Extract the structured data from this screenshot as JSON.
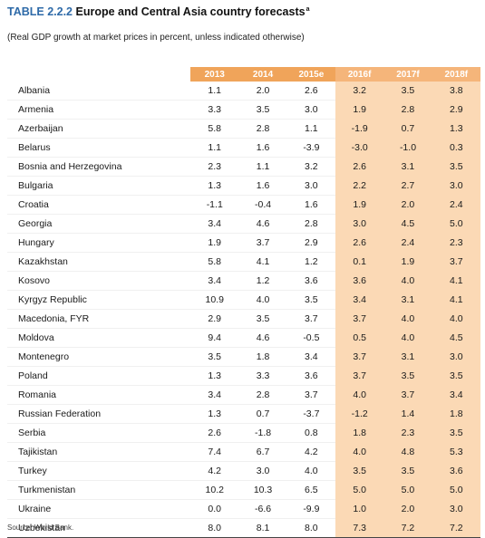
{
  "header": {
    "table_label": "TABLE 2.2.2",
    "title": "Europe and Central Asia country forecasts",
    "title_note": "a",
    "subtitle": "(Real GDP growth at market prices in percent, unless indicated otherwise)"
  },
  "table": {
    "columns": [
      "2013",
      "2014",
      "2015e",
      "2016f",
      "2017f",
      "2018f"
    ],
    "rows": [
      {
        "name": "Albania",
        "values": [
          "1.1",
          "2.0",
          "2.6",
          "3.2",
          "3.5",
          "3.8"
        ]
      },
      {
        "name": "Armenia",
        "values": [
          "3.3",
          "3.5",
          "3.0",
          "1.9",
          "2.8",
          "2.9"
        ]
      },
      {
        "name": "Azerbaijan",
        "values": [
          "5.8",
          "2.8",
          "1.1",
          "-1.9",
          "0.7",
          "1.3"
        ]
      },
      {
        "name": "Belarus",
        "values": [
          "1.1",
          "1.6",
          "-3.9",
          "-3.0",
          "-1.0",
          "0.3"
        ]
      },
      {
        "name": "Bosnia and Herzegovina",
        "values": [
          "2.3",
          "1.1",
          "3.2",
          "2.6",
          "3.1",
          "3.5"
        ]
      },
      {
        "name": "Bulgaria",
        "values": [
          "1.3",
          "1.6",
          "3.0",
          "2.2",
          "2.7",
          "3.0"
        ]
      },
      {
        "name": "Croatia",
        "values": [
          "-1.1",
          "-0.4",
          "1.6",
          "1.9",
          "2.0",
          "2.4"
        ]
      },
      {
        "name": "Georgia",
        "values": [
          "3.4",
          "4.6",
          "2.8",
          "3.0",
          "4.5",
          "5.0"
        ]
      },
      {
        "name": "Hungary",
        "values": [
          "1.9",
          "3.7",
          "2.9",
          "2.6",
          "2.4",
          "2.3"
        ]
      },
      {
        "name": "Kazakhstan",
        "values": [
          "5.8",
          "4.1",
          "1.2",
          "0.1",
          "1.9",
          "3.7"
        ]
      },
      {
        "name": "Kosovo",
        "values": [
          "3.4",
          "1.2",
          "3.6",
          "3.6",
          "4.0",
          "4.1"
        ]
      },
      {
        "name": "Kyrgyz Republic",
        "values": [
          "10.9",
          "4.0",
          "3.5",
          "3.4",
          "3.1",
          "4.1"
        ]
      },
      {
        "name": "Macedonia, FYR",
        "values": [
          "2.9",
          "3.5",
          "3.7",
          "3.7",
          "4.0",
          "4.0"
        ]
      },
      {
        "name": "Moldova",
        "values": [
          "9.4",
          "4.6",
          "-0.5",
          "0.5",
          "4.0",
          "4.5"
        ]
      },
      {
        "name": "Montenegro",
        "values": [
          "3.5",
          "1.8",
          "3.4",
          "3.7",
          "3.1",
          "3.0"
        ]
      },
      {
        "name": "Poland",
        "values": [
          "1.3",
          "3.3",
          "3.6",
          "3.7",
          "3.5",
          "3.5"
        ]
      },
      {
        "name": "Romania",
        "values": [
          "3.4",
          "2.8",
          "3.7",
          "4.0",
          "3.7",
          "3.4"
        ]
      },
      {
        "name": "Russian Federation",
        "values": [
          "1.3",
          "0.7",
          "-3.7",
          "-1.2",
          "1.4",
          "1.8"
        ]
      },
      {
        "name": "Serbia",
        "values": [
          "2.6",
          "-1.8",
          "0.8",
          "1.8",
          "2.3",
          "3.5"
        ]
      },
      {
        "name": "Tajikistan",
        "values": [
          "7.4",
          "6.7",
          "4.2",
          "4.0",
          "4.8",
          "5.3"
        ]
      },
      {
        "name": "Turkey",
        "values": [
          "4.2",
          "3.0",
          "4.0",
          "3.5",
          "3.5",
          "3.6"
        ]
      },
      {
        "name": "Turkmenistan",
        "values": [
          "10.2",
          "10.3",
          "6.5",
          "5.0",
          "5.0",
          "5.0"
        ]
      },
      {
        "name": "Ukraine",
        "values": [
          "0.0",
          "-6.6",
          "-9.9",
          "1.0",
          "2.0",
          "3.0"
        ]
      },
      {
        "name": "Uzbekistan",
        "values": [
          "8.0",
          "8.1",
          "8.0",
          "7.3",
          "7.2",
          "7.2"
        ]
      }
    ]
  },
  "footer": {
    "source": "Source: World Bank."
  },
  "colors": {
    "accent_blue": "#2e6aa8",
    "header_orange": "#f0a45a",
    "projection_header": "#f5b57a",
    "projection_shade": "#fbd9b5"
  }
}
